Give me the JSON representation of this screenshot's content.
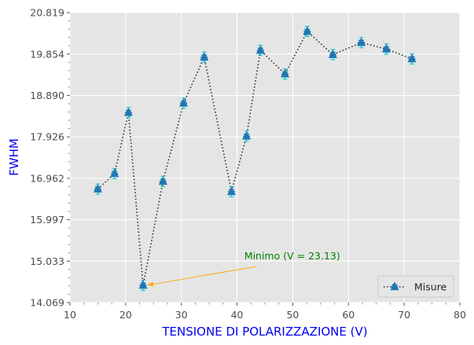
{
  "chart_data": {
    "type": "scatter",
    "xlabel": "TENSIONE DI POLARIZZAZIONE (V)",
    "ylabel": "FWHM",
    "xlim": [
      10,
      80
    ],
    "ylim": [
      14.069,
      20.819
    ],
    "xticks": [
      "10",
      "20",
      "30",
      "40",
      "50",
      "60",
      "70",
      "80"
    ],
    "yticks": [
      "14.069",
      "15.033",
      "15.997",
      "16.962",
      "17.926",
      "18.890",
      "19.854",
      "20.819"
    ],
    "grid": true,
    "legend_position": "bottom-right",
    "series": [
      {
        "name": "Misure",
        "color": "#1f77b4",
        "line_color": "#333333",
        "line_style": "dotted",
        "marker": "star-triangle",
        "errorbar_color": "#00ced1",
        "x": [
          15.0,
          18.0,
          20.5,
          23.13,
          26.7,
          30.4,
          34.1,
          39.0,
          41.7,
          44.2,
          48.6,
          52.6,
          57.2,
          62.3,
          66.8,
          71.4
        ],
        "y": [
          16.71,
          17.07,
          18.49,
          14.47,
          16.89,
          18.71,
          19.78,
          16.65,
          17.94,
          19.94,
          19.39,
          20.38,
          19.84,
          20.12,
          19.97,
          19.74
        ],
        "yerr": [
          0.12,
          0.12,
          0.12,
          0.12,
          0.12,
          0.12,
          0.12,
          0.12,
          0.12,
          0.12,
          0.12,
          0.12,
          0.12,
          0.12,
          0.12,
          0.12
        ]
      }
    ],
    "annotations": [
      {
        "text": "Minimo (V = 23.13)",
        "color": "#008000",
        "arrow_color": "#ffa500",
        "point": [
          23.13,
          14.47
        ],
        "text_anchor_point": [
          41.3,
          15.15
        ]
      }
    ]
  }
}
